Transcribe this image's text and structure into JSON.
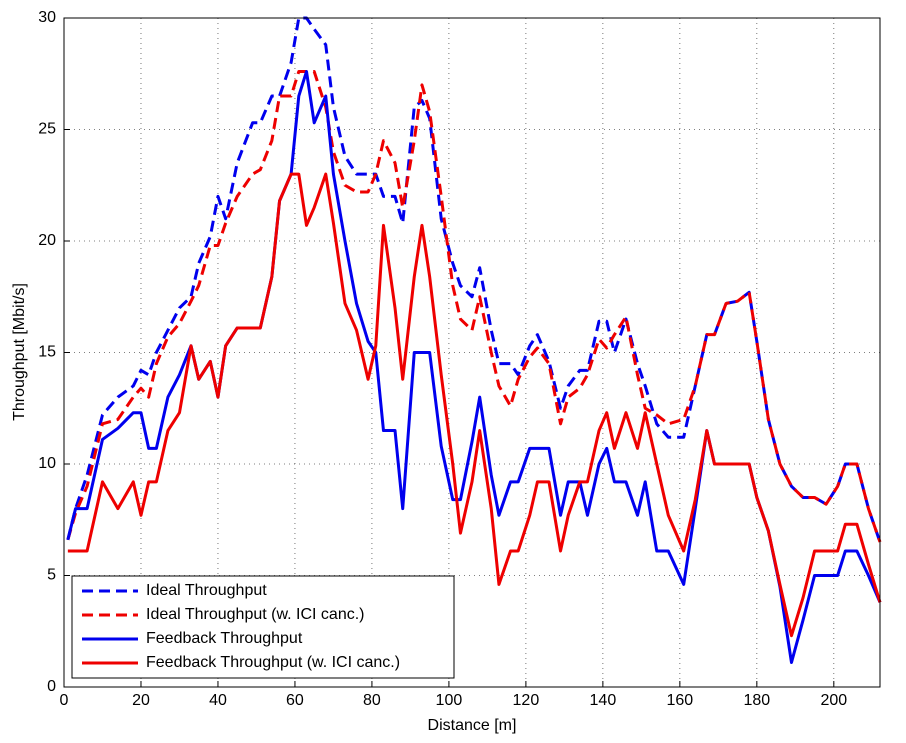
{
  "chart_data": {
    "type": "line",
    "x_label": "Distance [m]",
    "y_label": "Throughput [Mbit/s]",
    "xlim": [
      0,
      212
    ],
    "ylim": [
      0,
      30
    ],
    "xticks": [
      0,
      20,
      40,
      60,
      80,
      100,
      120,
      140,
      160,
      180,
      200
    ],
    "yticks": [
      0,
      5,
      10,
      15,
      20,
      25,
      30
    ],
    "grid": true,
    "legend": "lower left",
    "x": [
      1,
      3,
      6,
      10,
      14,
      18,
      20,
      22,
      24,
      27,
      30,
      33,
      35,
      38,
      40,
      42,
      45,
      49,
      51,
      54,
      56,
      59,
      61,
      63,
      65,
      68,
      70,
      73,
      76,
      79,
      81,
      83,
      86,
      88,
      91,
      93,
      95,
      98,
      101,
      103,
      106,
      108,
      111,
      113,
      116,
      118,
      121,
      123,
      126,
      129,
      131,
      134,
      136,
      139,
      141,
      143,
      146,
      149,
      151,
      154,
      157,
      161,
      164,
      167,
      169,
      172,
      175,
      178,
      180,
      183,
      186,
      189,
      192,
      195,
      198,
      201,
      203,
      206,
      209,
      212
    ],
    "series": [
      {
        "name": "Ideal Throughput",
        "color": "#0000ee",
        "linestyle": "dashed",
        "values": [
          6.6,
          8,
          9.5,
          12.2,
          13,
          13.5,
          14.2,
          14,
          15,
          16,
          17,
          17.5,
          19,
          20.2,
          22,
          21,
          23.5,
          25.3,
          25.3,
          26.5,
          26.5,
          28,
          30,
          30,
          29.5,
          28.8,
          26,
          23.8,
          23,
          23,
          23,
          22,
          22,
          20.8,
          26,
          26.3,
          25.5,
          21,
          19,
          18,
          17.5,
          18.8,
          16,
          14.5,
          14.5,
          14,
          15.3,
          15.8,
          14.6,
          12.5,
          13.5,
          14.2,
          14.2,
          16.4,
          16.4,
          15,
          16.5,
          14.5,
          13.5,
          11.8,
          11.2,
          11.2,
          13.5,
          15.8,
          15.8,
          17.2,
          17.3,
          17.7,
          15.5,
          12,
          10,
          9,
          8.5,
          8.5,
          8.2,
          9,
          10,
          10,
          8,
          6.5
        ]
      },
      {
        "name": "Ideal Throughput (w. ICI canc.)",
        "color": "#ee0000",
        "linestyle": "dashed",
        "values": [
          6.6,
          7.8,
          9,
          11.8,
          12,
          13,
          13.4,
          13,
          14.5,
          15.7,
          16.3,
          17.3,
          18,
          19.8,
          19.8,
          20.8,
          22,
          23,
          23.2,
          24.5,
          26.5,
          26.5,
          27.6,
          27.6,
          27.6,
          26,
          24,
          22.5,
          22.2,
          22.2,
          23,
          24.5,
          23.5,
          21.5,
          24.5,
          27,
          25.8,
          22,
          18,
          16.5,
          16,
          17.5,
          15,
          13.5,
          12.6,
          13.8,
          14.8,
          15.2,
          14.5,
          11.8,
          13,
          13.4,
          14,
          15.6,
          15.2,
          15.8,
          16.6,
          14,
          12.5,
          12.2,
          11.8,
          12,
          13.5,
          15.8,
          15.8,
          17.2,
          17.3,
          17.7,
          15.5,
          12,
          10,
          9,
          8.5,
          8.5,
          8.2,
          9,
          10,
          10,
          8,
          6.5
        ]
      },
      {
        "name": "Feedback Throughput",
        "color": "#0000ee",
        "linestyle": "solid",
        "values": [
          6.6,
          8,
          8,
          11.1,
          11.6,
          12.3,
          12.3,
          10.7,
          10.7,
          13,
          14,
          15.3,
          13.8,
          14.6,
          13,
          15.3,
          16.1,
          16.1,
          16.1,
          18.4,
          21.8,
          23,
          26.5,
          27.6,
          25.3,
          26.5,
          23,
          20,
          17.2,
          15.5,
          15,
          11.5,
          11.5,
          8,
          15,
          15,
          15,
          10.8,
          8.4,
          8.4,
          11,
          13,
          9.5,
          7.7,
          9.2,
          9.2,
          10.7,
          10.7,
          10.7,
          7.7,
          9.2,
          9.2,
          7.7,
          10,
          10.7,
          9.2,
          9.2,
          7.7,
          9.2,
          6.1,
          6.1,
          4.6,
          8,
          11.5,
          10,
          10,
          10,
          10,
          8.5,
          7,
          4.5,
          1.1,
          3,
          5,
          5,
          5,
          6.1,
          6.1,
          5,
          3.8
        ]
      },
      {
        "name": "Feedback Throughput (w. ICI canc.)",
        "color": "#ee0000",
        "linestyle": "solid",
        "values": [
          6.1,
          6.1,
          6.1,
          9.2,
          8,
          9.2,
          7.7,
          9.2,
          9.2,
          11.5,
          12.3,
          15.3,
          13.8,
          14.6,
          13,
          15.3,
          16.1,
          16.1,
          16.1,
          18.4,
          21.8,
          23,
          23,
          20.7,
          21.5,
          23,
          20.8,
          17.2,
          16,
          13.8,
          15.3,
          20.7,
          17,
          13.8,
          18.4,
          20.7,
          18.4,
          14,
          10,
          6.9,
          9.2,
          11.5,
          8,
          4.6,
          6.1,
          6.1,
          7.7,
          9.2,
          9.2,
          6.1,
          7.7,
          9.2,
          9.2,
          11.5,
          12.3,
          10.7,
          12.3,
          10.7,
          12.3,
          10,
          7.7,
          6.1,
          8.4,
          11.5,
          10,
          10,
          10,
          10,
          8.5,
          7,
          4.6,
          2.3,
          4,
          6.1,
          6.1,
          6.1,
          7.3,
          7.3,
          5.5,
          3.8
        ]
      }
    ]
  }
}
